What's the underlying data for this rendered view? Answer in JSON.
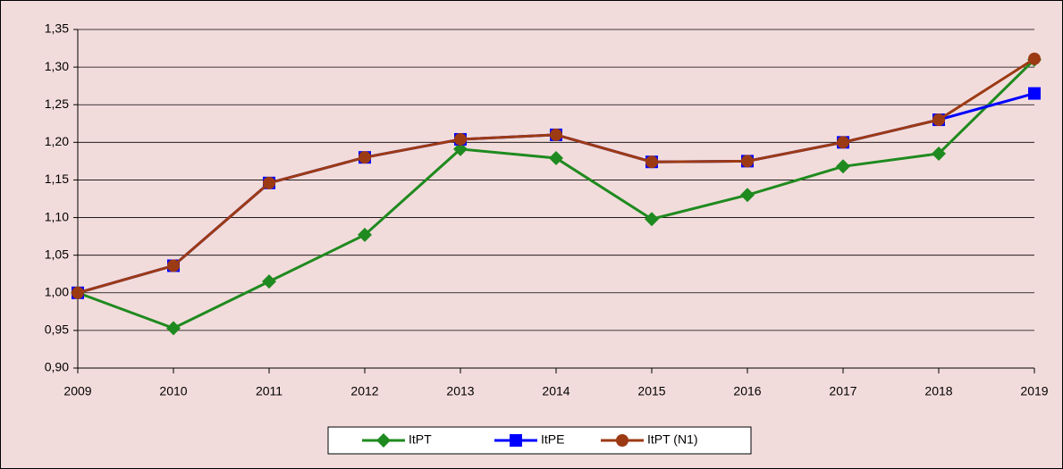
{
  "chart_data": {
    "type": "line",
    "categories": [
      "2009",
      "2010",
      "2011",
      "2012",
      "2013",
      "2014",
      "2015",
      "2016",
      "2017",
      "2018",
      "2019"
    ],
    "series": [
      {
        "name": "ItPT",
        "color": "#1f8a1f",
        "marker": "diamond",
        "values": [
          1.0,
          0.953,
          1.015,
          1.077,
          1.191,
          1.179,
          1.098,
          1.13,
          1.168,
          1.185,
          1.31
        ]
      },
      {
        "name": "ItPE",
        "color": "#0000ff",
        "marker": "square",
        "values": [
          1.0,
          1.036,
          1.146,
          1.18,
          1.204,
          1.21,
          1.174,
          1.175,
          1.2,
          1.23,
          1.265
        ]
      },
      {
        "name": "ItPT (N1)",
        "color": "#9c3a14",
        "marker": "circle",
        "values": [
          1.0,
          1.036,
          1.146,
          1.18,
          1.204,
          1.21,
          1.174,
          1.175,
          1.2,
          1.23,
          1.311
        ]
      }
    ],
    "ylim": [
      0.9,
      1.35
    ],
    "yticks": [
      {
        "value": 0.9,
        "label": "0,90"
      },
      {
        "value": 0.95,
        "label": "0,95"
      },
      {
        "value": 1.0,
        "label": "1,00"
      },
      {
        "value": 1.05,
        "label": "1,05"
      },
      {
        "value": 1.1,
        "label": "1,10"
      },
      {
        "value": 1.15,
        "label": "1,15"
      },
      {
        "value": 1.2,
        "label": "1,20"
      },
      {
        "value": 1.25,
        "label": "1,25"
      },
      {
        "value": 1.3,
        "label": "1,30"
      },
      {
        "value": 1.35,
        "label": "1,35"
      }
    ],
    "grid": true,
    "legend": "bottom",
    "background": "#f2dcdb"
  }
}
